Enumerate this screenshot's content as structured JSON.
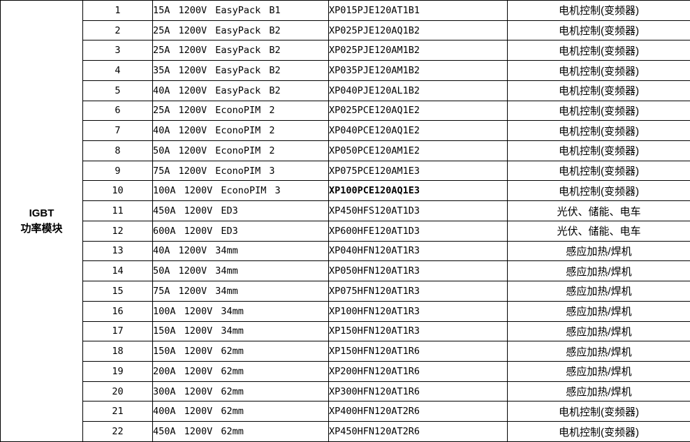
{
  "colors": {
    "border": "#000000",
    "background": "#ffffff",
    "text": "#000000"
  },
  "table": {
    "group": {
      "line1": "IGBT",
      "line2": "功率模块"
    },
    "rows": [
      {
        "no": "1",
        "spec": "15A 1200V EasyPack B1",
        "part": "XP015PJE120AT1B1",
        "part_bold": false,
        "app": "电机控制(变频器)"
      },
      {
        "no": "2",
        "spec": "25A 1200V EasyPack B2",
        "part": "XP025PJE120AQ1B2",
        "part_bold": false,
        "app": "电机控制(变频器)"
      },
      {
        "no": "3",
        "spec": "25A 1200V EasyPack B2",
        "part": "XP025PJE120AM1B2",
        "part_bold": false,
        "app": "电机控制(变频器)"
      },
      {
        "no": "4",
        "spec": "35A 1200V EasyPack B2",
        "part": "XP035PJE120AM1B2",
        "part_bold": false,
        "app": "电机控制(变频器)"
      },
      {
        "no": "5",
        "spec": "40A 1200V EasyPack B2",
        "part": "XP040PJE120AL1B2",
        "part_bold": false,
        "app": "电机控制(变频器)"
      },
      {
        "no": "6",
        "spec": "25A 1200V EconoPIM 2",
        "part": "XP025PCE120AQ1E2",
        "part_bold": false,
        "app": "电机控制(变频器)"
      },
      {
        "no": "7",
        "spec": "40A 1200V EconoPIM 2",
        "part": "XP040PCE120AQ1E2",
        "part_bold": false,
        "app": "电机控制(变频器)"
      },
      {
        "no": "8",
        "spec": "50A 1200V EconoPIM 2",
        "part": "XP050PCE120AM1E2",
        "part_bold": false,
        "app": "电机控制(变频器)"
      },
      {
        "no": "9",
        "spec": "75A 1200V EconoPIM 3",
        "part": "XP075PCE120AM1E3",
        "part_bold": false,
        "app": "电机控制(变频器)"
      },
      {
        "no": "10",
        "spec": "100A 1200V EconoPIM 3",
        "part": "XP100PCE120AQ1E3",
        "part_bold": true,
        "app": "电机控制(变频器)"
      },
      {
        "no": "11",
        "spec": "450A 1200V ED3",
        "part": "XP450HFS120AT1D3",
        "part_bold": false,
        "app": "光伏、储能、电车"
      },
      {
        "no": "12",
        "spec": "600A 1200V ED3",
        "part": "XP600HFE120AT1D3",
        "part_bold": false,
        "app": "光伏、储能、电车"
      },
      {
        "no": "13",
        "spec": "40A 1200V 34mm",
        "part": "XP040HFN120AT1R3",
        "part_bold": false,
        "app": "感应加热/焊机"
      },
      {
        "no": "14",
        "spec": "50A 1200V 34mm",
        "part": "XP050HFN120AT1R3",
        "part_bold": false,
        "app": "感应加热/焊机"
      },
      {
        "no": "15",
        "spec": "75A 1200V 34mm",
        "part": "XP075HFN120AT1R3",
        "part_bold": false,
        "app": "感应加热/焊机"
      },
      {
        "no": "16",
        "spec": "100A 1200V 34mm",
        "part": "XP100HFN120AT1R3",
        "part_bold": false,
        "app": "感应加热/焊机"
      },
      {
        "no": "17",
        "spec": "150A 1200V 34mm",
        "part": "XP150HFN120AT1R3",
        "part_bold": false,
        "app": "感应加热/焊机"
      },
      {
        "no": "18",
        "spec": "150A 1200V 62mm",
        "part": "XP150HFN120AT1R6",
        "part_bold": false,
        "app": "感应加热/焊机"
      },
      {
        "no": "19",
        "spec": "200A 1200V 62mm",
        "part": "XP200HFN120AT1R6",
        "part_bold": false,
        "app": "感应加热/焊机"
      },
      {
        "no": "20",
        "spec": "300A 1200V 62mm",
        "part": "XP300HFN120AT1R6",
        "part_bold": false,
        "app": "感应加热/焊机"
      },
      {
        "no": "21",
        "spec": "400A 1200V 62mm",
        "part": "XP400HFN120AT2R6",
        "part_bold": false,
        "app": "电机控制(变频器)"
      },
      {
        "no": "22",
        "spec": "450A 1200V 62mm",
        "part": "XP450HFN120AT2R6",
        "part_bold": false,
        "app": "电机控制(变频器)"
      }
    ]
  }
}
